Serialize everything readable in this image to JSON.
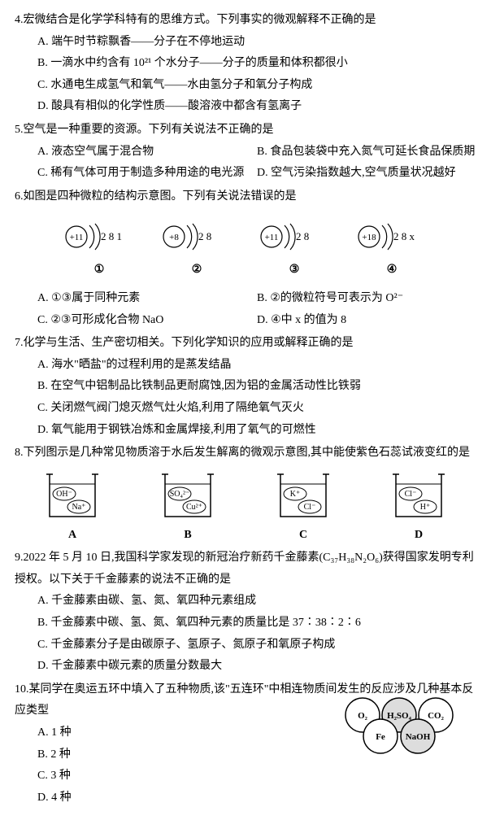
{
  "q4": {
    "num": "4.",
    "stem": "宏微结合是化学学科特有的思维方式。下列事实的微观解释不正确的是",
    "A": "A. 端午时节粽飘香——分子在不停地运动",
    "B": "B. 一滴水中约含有 10²¹ 个水分子——分子的质量和体积都很小",
    "C": "C. 水通电生成氢气和氧气——水由氢分子和氧分子构成",
    "D": "D. 酸具有相似的化学性质——酸溶液中都含有氢离子"
  },
  "q5": {
    "num": "5.",
    "stem": "空气是一种重要的资源。下列有关说法不正确的是",
    "A": "A. 液态空气属于混合物",
    "B": "B. 食品包装袋中充入氮气可延长食品保质期",
    "C": "C. 稀有气体可用于制造多种用途的电光源",
    "D": "D. 空气污染指数越大,空气质量状况越好"
  },
  "q6": {
    "num": "6.",
    "stem": "如图是四种微粒的结构示意图。下列有关说法错误的是",
    "atoms": [
      {
        "n": "+11",
        "sh": "2 8 1",
        "lbl": "①"
      },
      {
        "n": "+8",
        "sh": "2 8",
        "lbl": "②"
      },
      {
        "n": "+11",
        "sh": "2 8",
        "lbl": "③"
      },
      {
        "n": "+18",
        "sh": "2 8 x",
        "lbl": "④"
      }
    ],
    "A": "A. ①③属于同种元素",
    "B": "B. ②的微粒符号可表示为 O²⁻",
    "C": "C. ②③可形成化合物 NaO",
    "D": "D. ④中 x 的值为 8"
  },
  "q7": {
    "num": "7.",
    "stem": "化学与生活、生产密切相关。下列化学知识的应用或解释正确的是",
    "A": "A. 海水\"晒盐\"的过程利用的是蒸发结晶",
    "B": "B. 在空气中铝制品比铁制品更耐腐蚀,因为铝的金属活动性比铁弱",
    "C": "C. 关闭燃气阀门熄灭燃气灶火焰,利用了隔绝氧气灭火",
    "D": "D. 氧气能用于钢铁冶炼和金属焊接,利用了氧气的可燃性"
  },
  "q8": {
    "num": "8.",
    "stem": "下列图示是几种常见物质溶于水后发生解离的微观示意图,其中能使紫色石蕊试液变红的是",
    "beakers": [
      {
        "ions": [
          "OH⁻",
          "Na⁺"
        ],
        "lbl": "A"
      },
      {
        "ions": [
          "SO₄²⁻",
          "Cu²⁺"
        ],
        "lbl": "B"
      },
      {
        "ions": [
          "K⁺",
          "Cl⁻"
        ],
        "lbl": "C"
      },
      {
        "ions": [
          "Cl⁻",
          "H⁺"
        ],
        "lbl": "D"
      }
    ]
  },
  "q9": {
    "num": "9.",
    "stem": "2022 年 5 月 10 日,我国科学家发现的新冠治疗新药千金藤素(C₃₇H₃₈N₂O₆)获得国家发明专利授权。以下关于千金藤素的说法不正确的是",
    "A": "A. 千金藤素由碳、氢、氮、氧四种元素组成",
    "B": "B. 千金藤素中碳、氢、氮、氧四种元素的质量比是 37∶38∶2∶6",
    "C": "C. 千金藤素分子是由碳原子、氢原子、氮原子和氧原子构成",
    "D": "D. 千金藤素中碳元素的质量分数最大"
  },
  "q10": {
    "num": "10.",
    "stem": "某同学在奥运五环中填入了五种物质,该\"五连环\"中相连物质间发生的反应涉及几种基本反应类型",
    "A": "A. 1 种",
    "B": "B. 2 种",
    "C": "C. 3 种",
    "D": "D. 4 种",
    "rings": [
      "O₂",
      "H₂SO₄",
      "CO₂",
      "Fe",
      "NaOH"
    ],
    "ringColors": [
      "#fff",
      "#ddd",
      "#fff",
      "#fff",
      "#ddd"
    ]
  }
}
